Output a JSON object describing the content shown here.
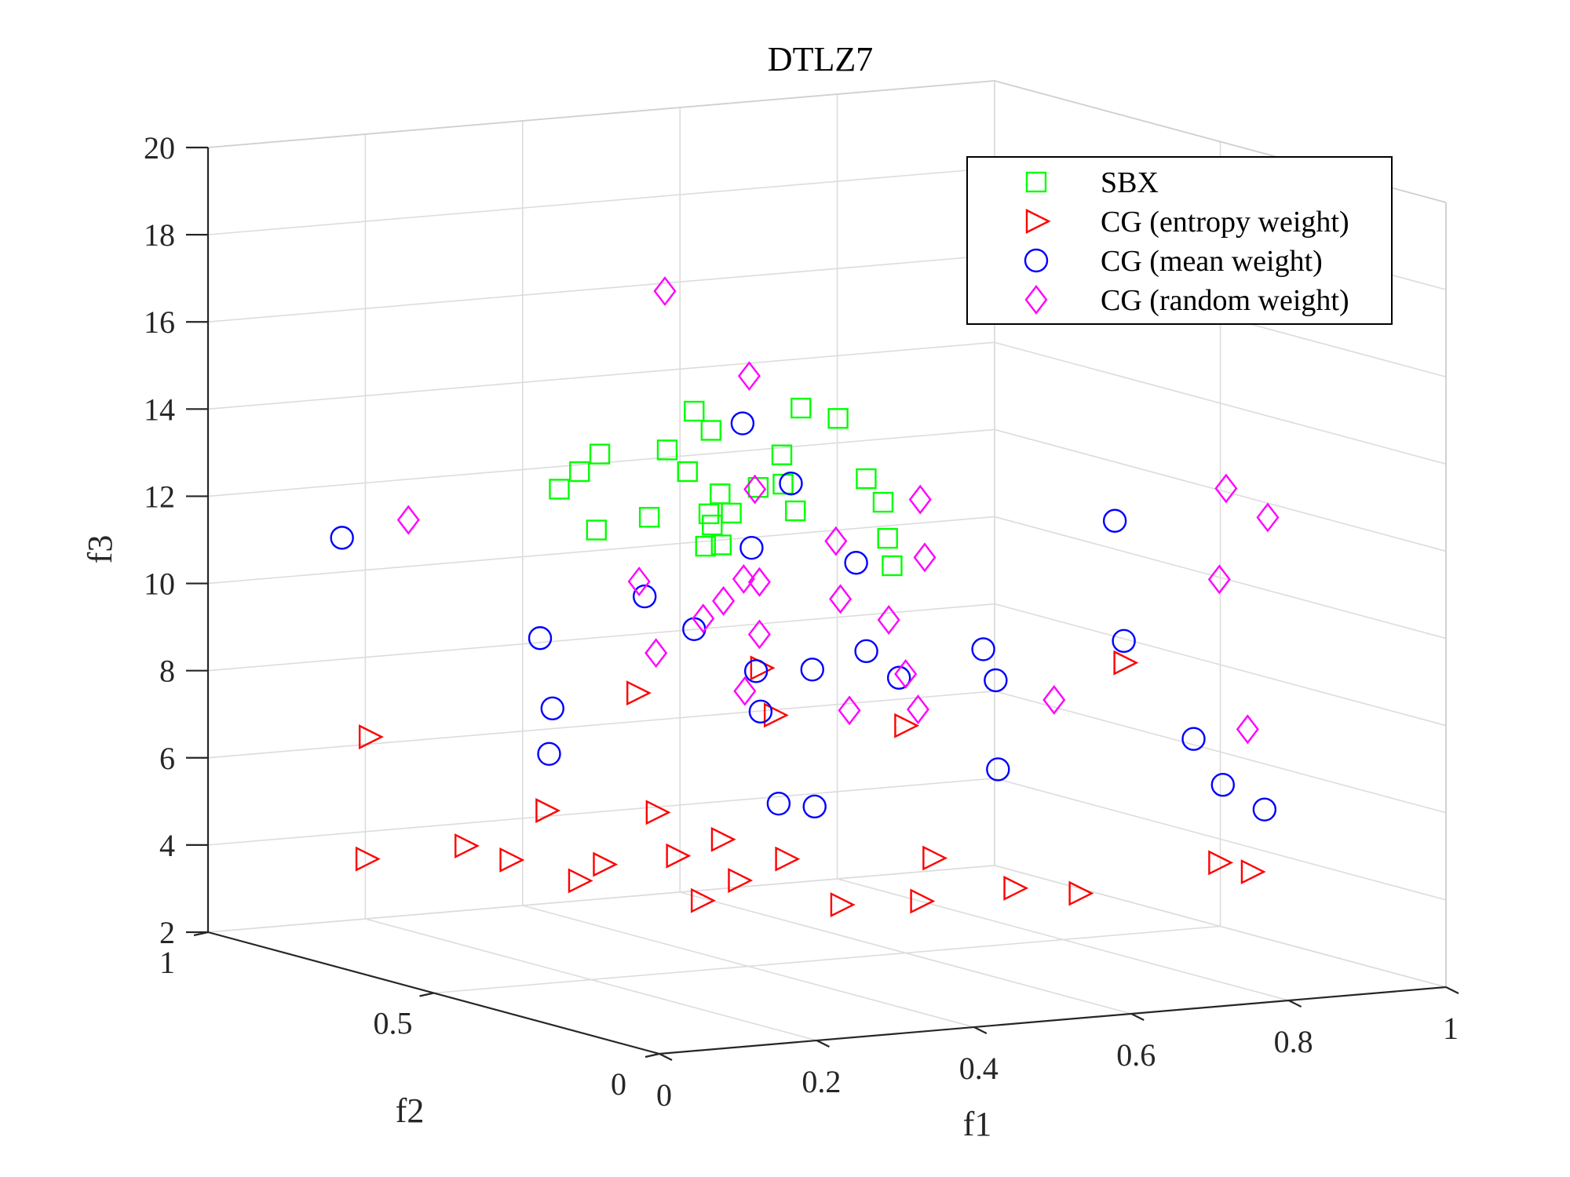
{
  "chart_data": {
    "type": "scatter",
    "projection": "3d",
    "title": "DTLZ7",
    "xlabel": "f1",
    "ylabel": "f2",
    "zlabel": "f3",
    "xlim": [
      0,
      1
    ],
    "ylim": [
      0,
      1
    ],
    "zlim": [
      2,
      20
    ],
    "xticks": [
      "0",
      "0.2",
      "0.4",
      "0.6",
      "0.8",
      "1"
    ],
    "yticks": [
      "0",
      "0.5",
      "1"
    ],
    "zticks": [
      "2",
      "4",
      "6",
      "8",
      "10",
      "12",
      "14",
      "16",
      "18",
      "20"
    ],
    "grid": true,
    "legend_position": "top-right",
    "series": [
      {
        "name": "SBX",
        "marker": "square",
        "color": "#00ff00",
        "points": [
          [
            0.28,
            0.62,
            13.6
          ],
          [
            0.26,
            0.63,
            13.2
          ],
          [
            0.24,
            0.64,
            12.8
          ],
          [
            0.27,
            0.61,
            11.9
          ],
          [
            0.32,
            0.58,
            12.2
          ],
          [
            0.36,
            0.61,
            13.6
          ],
          [
            0.4,
            0.62,
            14.4
          ],
          [
            0.41,
            0.6,
            14.0
          ],
          [
            0.38,
            0.6,
            13.1
          ],
          [
            0.39,
            0.57,
            12.2
          ],
          [
            0.41,
            0.58,
            12.6
          ],
          [
            0.4,
            0.58,
            11.9
          ],
          [
            0.43,
            0.59,
            12.1
          ],
          [
            0.38,
            0.56,
            11.5
          ],
          [
            0.4,
            0.56,
            11.5
          ],
          [
            0.47,
            0.6,
            12.6
          ],
          [
            0.49,
            0.58,
            12.7
          ],
          [
            0.5,
            0.57,
            12.1
          ],
          [
            0.5,
            0.6,
            13.3
          ],
          [
            0.53,
            0.61,
            14.3
          ],
          [
            0.56,
            0.58,
            14.1
          ],
          [
            0.59,
            0.57,
            12.7
          ],
          [
            0.6,
            0.55,
            12.2
          ],
          [
            0.6,
            0.54,
            11.4
          ],
          [
            0.6,
            0.53,
            10.8
          ]
        ]
      },
      {
        "name": "CG (entropy weight)",
        "marker": "triangle-right",
        "color": "#ff0000",
        "points": [
          [
            0.04,
            0.72,
            4.4
          ],
          [
            0.12,
            0.64,
            4.8
          ],
          [
            0.16,
            0.61,
            4.5
          ],
          [
            0.2,
            0.6,
            5.6
          ],
          [
            0.23,
            0.58,
            4.0
          ],
          [
            0.25,
            0.56,
            4.4
          ],
          [
            0.3,
            0.53,
            5.6
          ],
          [
            0.32,
            0.52,
            4.6
          ],
          [
            0.34,
            0.5,
            3.6
          ],
          [
            0.36,
            0.49,
            5.0
          ],
          [
            0.37,
            0.47,
            4.1
          ],
          [
            0.43,
            0.47,
            4.5
          ],
          [
            0.46,
            0.4,
            3.6
          ],
          [
            0.55,
            0.38,
            3.6
          ],
          [
            0.56,
            0.37,
            4.6
          ],
          [
            0.64,
            0.33,
            3.9
          ],
          [
            0.7,
            0.29,
            3.8
          ],
          [
            0.82,
            0.19,
            4.6
          ],
          [
            0.85,
            0.17,
            4.4
          ],
          [
            0.09,
            0.8,
            6.9
          ],
          [
            0.35,
            0.66,
            7.9
          ],
          [
            0.45,
            0.56,
            8.6
          ],
          [
            0.45,
            0.53,
            7.6
          ],
          [
            0.57,
            0.45,
            7.4
          ],
          [
            0.82,
            0.4,
            8.6
          ]
        ]
      },
      {
        "name": "CG (mean weight)",
        "marker": "circle",
        "color": "#0000ff",
        "points": [
          [
            0.09,
            0.86,
            11.3
          ],
          [
            0.25,
            0.7,
            9.2
          ],
          [
            0.26,
            0.69,
            7.6
          ],
          [
            0.25,
            0.68,
            6.6
          ],
          [
            0.36,
            0.66,
            10.1
          ],
          [
            0.4,
            0.62,
            9.4
          ],
          [
            0.45,
            0.6,
            14.1
          ],
          [
            0.45,
            0.58,
            11.3
          ],
          [
            0.45,
            0.57,
            8.5
          ],
          [
            0.45,
            0.56,
            7.6
          ],
          [
            0.45,
            0.52,
            5.6
          ],
          [
            0.5,
            0.58,
            12.7
          ],
          [
            0.49,
            0.51,
            5.5
          ],
          [
            0.51,
            0.55,
            8.5
          ],
          [
            0.56,
            0.54,
            10.9
          ],
          [
            0.55,
            0.5,
            9.0
          ],
          [
            0.58,
            0.48,
            8.4
          ],
          [
            0.67,
            0.45,
            9.0
          ],
          [
            0.68,
            0.44,
            8.3
          ],
          [
            0.66,
            0.4,
            6.4
          ],
          [
            0.82,
            0.42,
            11.8
          ],
          [
            0.82,
            0.4,
            9.1
          ],
          [
            0.88,
            0.35,
            6.9
          ],
          [
            0.9,
            0.32,
            5.9
          ],
          [
            0.93,
            0.28,
            5.4
          ]
        ]
      },
      {
        "name": "CG (random weight)",
        "marker": "diamond",
        "color": "#ff00ff",
        "points": [
          [
            0.14,
            0.8,
            11.8
          ],
          [
            0.38,
            0.65,
            17.1
          ],
          [
            0.47,
            0.62,
            15.1
          ],
          [
            0.46,
            0.59,
            12.6
          ],
          [
            0.33,
            0.62,
            10.6
          ],
          [
            0.34,
            0.6,
            9.0
          ],
          [
            0.4,
            0.6,
            9.7
          ],
          [
            0.42,
            0.59,
            10.1
          ],
          [
            0.44,
            0.58,
            10.6
          ],
          [
            0.46,
            0.58,
            10.5
          ],
          [
            0.46,
            0.58,
            9.3
          ],
          [
            0.43,
            0.56,
            8.1
          ],
          [
            0.54,
            0.55,
            11.4
          ],
          [
            0.54,
            0.54,
            10.1
          ],
          [
            0.54,
            0.52,
            7.6
          ],
          [
            0.59,
            0.52,
            9.6
          ],
          [
            0.6,
            0.5,
            8.4
          ],
          [
            0.61,
            0.49,
            7.6
          ],
          [
            0.63,
            0.52,
            12.3
          ],
          [
            0.63,
            0.51,
            11.0
          ],
          [
            0.76,
            0.45,
            7.7
          ],
          [
            0.95,
            0.4,
            12.4
          ],
          [
            0.98,
            0.36,
            11.8
          ],
          [
            0.93,
            0.38,
            10.4
          ],
          [
            0.92,
            0.3,
            7.2
          ]
        ]
      }
    ]
  }
}
